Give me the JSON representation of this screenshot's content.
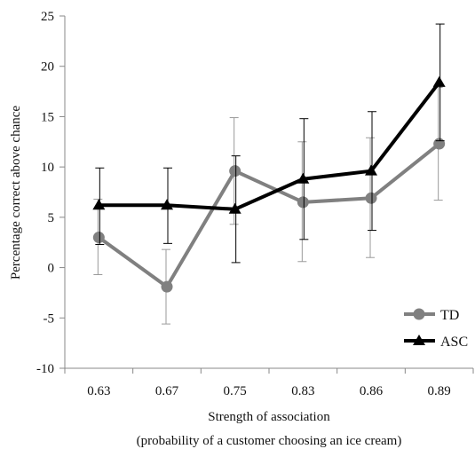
{
  "chart_data": {
    "type": "line",
    "categories": [
      "0.63",
      "0.67",
      "0.75",
      "0.83",
      "0.86",
      "0.89"
    ],
    "xlabel_lines": [
      "Strength of association",
      "(probability of a customer choosing an ice cream)"
    ],
    "ylabel": "Percentage correct above chance",
    "ylim": [
      -10,
      25
    ],
    "yticks": [
      -10,
      -5,
      0,
      5,
      10,
      15,
      20,
      25
    ],
    "ytick_labels": [
      "-10",
      "-5",
      "0",
      "5",
      "10",
      "15",
      "20",
      "25"
    ],
    "grid": false,
    "legend_position": "bottom-right",
    "series": [
      {
        "name": "TD",
        "values": [
          3.0,
          -1.9,
          9.6,
          6.5,
          6.9,
          12.3
        ],
        "err_low": [
          -0.7,
          -5.6,
          4.3,
          0.6,
          1.0,
          6.7
        ],
        "err_high": [
          6.8,
          1.8,
          14.9,
          12.5,
          12.9,
          17.9
        ],
        "color": "#808080",
        "marker": "circle"
      },
      {
        "name": "ASC",
        "values": [
          6.2,
          6.2,
          5.8,
          8.8,
          9.6,
          18.4
        ],
        "err_low": [
          2.3,
          2.4,
          0.5,
          2.8,
          3.7,
          12.6
        ],
        "err_high": [
          9.9,
          9.9,
          11.1,
          14.8,
          15.5,
          24.2
        ],
        "color": "#000000",
        "marker": "triangle"
      }
    ]
  }
}
